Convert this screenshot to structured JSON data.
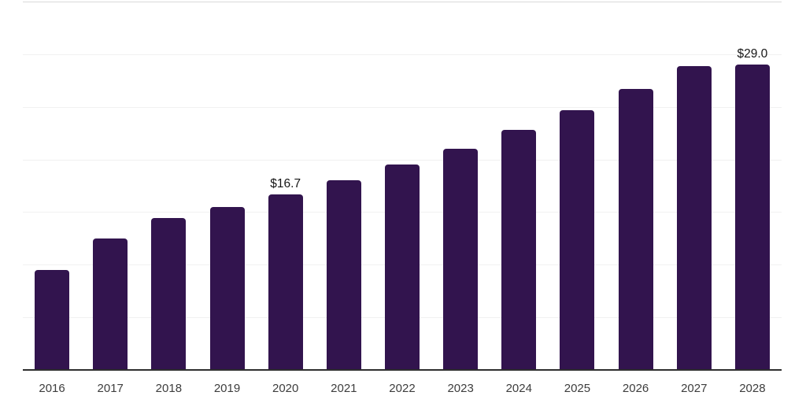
{
  "chart_data": {
    "type": "bar",
    "categories": [
      "2016",
      "2017",
      "2018",
      "2019",
      "2020",
      "2021",
      "2022",
      "2023",
      "2024",
      "2025",
      "2026",
      "2027",
      "2028"
    ],
    "values": [
      9.5,
      12.5,
      14.4,
      15.5,
      16.7,
      18.0,
      19.5,
      21.0,
      22.8,
      24.7,
      26.7,
      28.9,
      29.0
    ],
    "annotations": [
      {
        "category": "2020",
        "label": "$16.7"
      },
      {
        "category": "2028",
        "label": "$29.0"
      }
    ],
    "ylim": [
      0,
      35
    ],
    "y_grid_step": 5,
    "grid": true,
    "y_tick_labels_visible": false,
    "legend": false,
    "colors": {
      "bar": "#32144e",
      "gridline": "#f1f1f1",
      "top_gridline": "#d9d9d9",
      "axis_line": "#2e2e2e",
      "tick_label": "#3d3d3d",
      "annotation": "#161616",
      "background": "#ffffff"
    }
  }
}
